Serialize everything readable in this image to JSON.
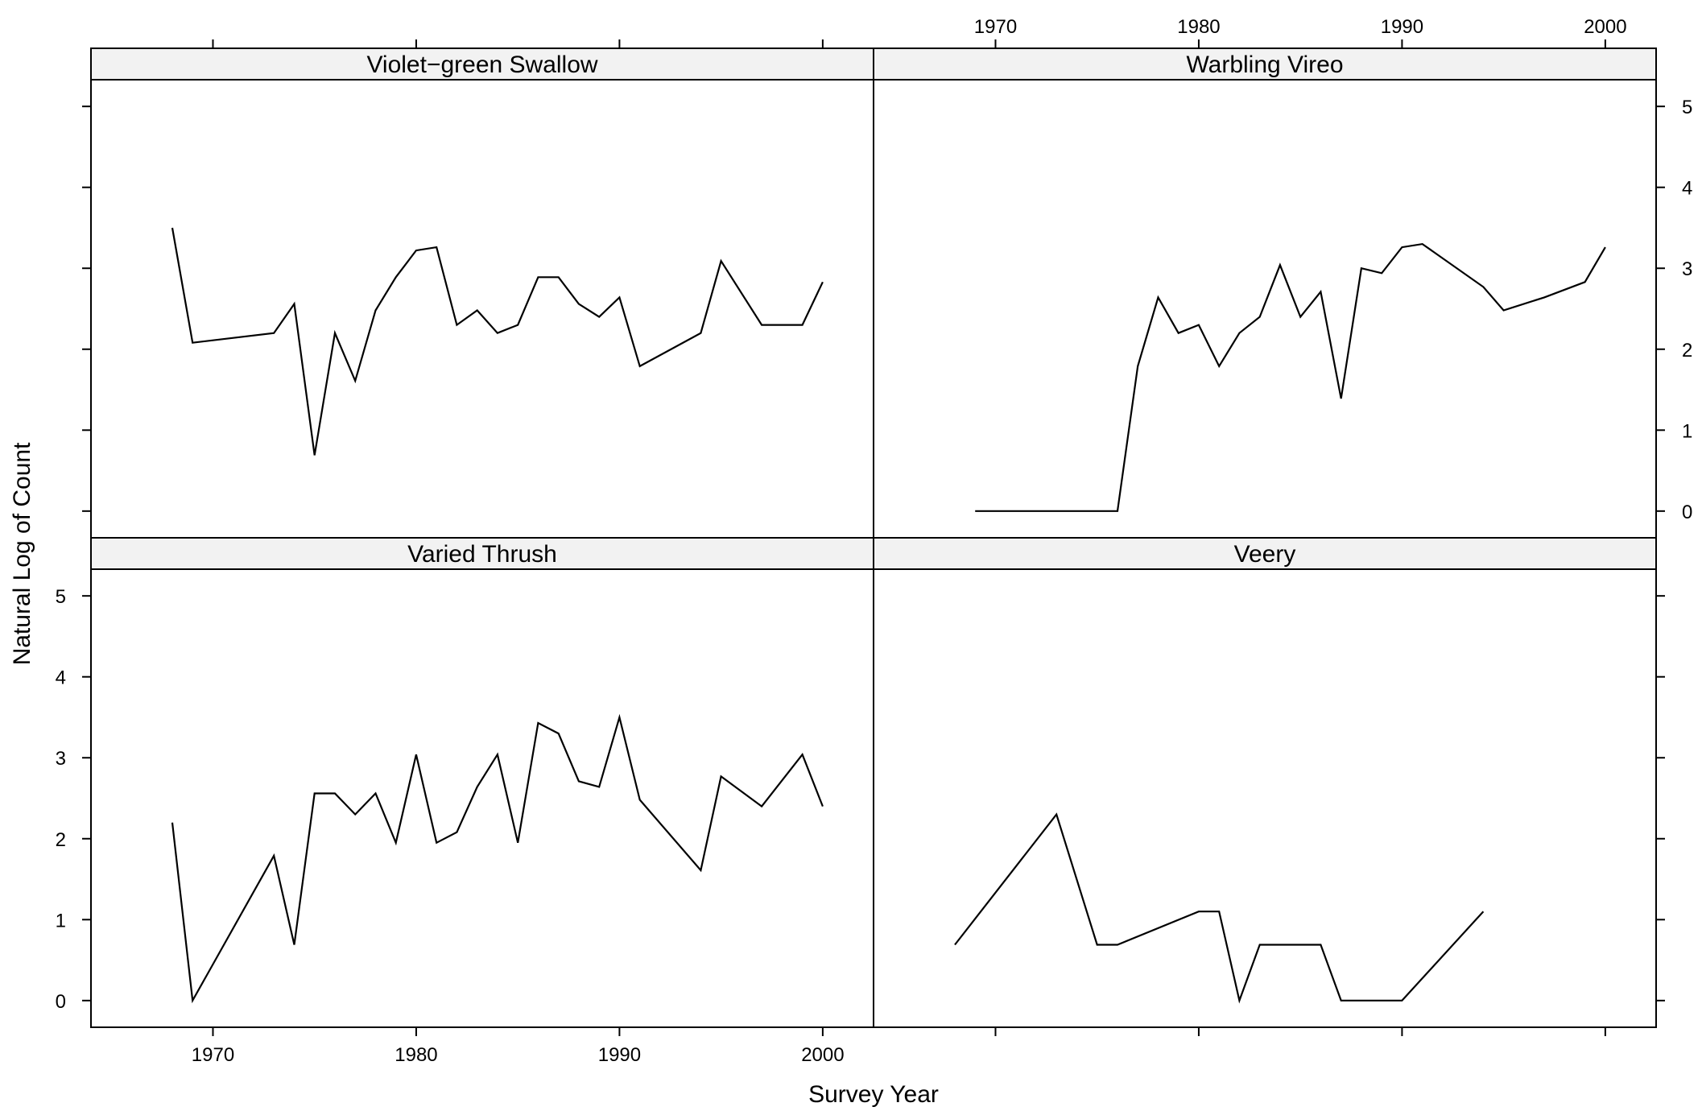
{
  "chart_data": {
    "type": "line",
    "layout": "2x2 trellis panels",
    "xlabel": "Survey Year",
    "ylabel": "Natural Log of Count",
    "xlim": [
      1964,
      2002.5
    ],
    "ylim": [
      -0.33,
      5.33
    ],
    "xticks": [
      1970,
      1980,
      1990,
      2000
    ],
    "yticks": [
      0,
      1,
      2,
      3,
      4,
      5
    ],
    "grid": false,
    "legend": "none",
    "panels": [
      {
        "title": "Violet−green Swallow",
        "row": "top",
        "col": "left",
        "x": [
          1968,
          1969,
          1973,
          1974,
          1975,
          1976,
          1977,
          1978,
          1979,
          1980,
          1981,
          1982,
          1983,
          1984,
          1985,
          1986,
          1987,
          1988,
          1989,
          1990,
          1991,
          1994,
          1995,
          1997,
          1999,
          2000
        ],
        "y": [
          3.5,
          2.08,
          2.2,
          2.56,
          0.69,
          2.2,
          1.61,
          2.48,
          2.89,
          3.22,
          3.26,
          2.3,
          2.48,
          2.2,
          2.3,
          2.89,
          2.89,
          2.56,
          2.4,
          2.64,
          1.79,
          2.2,
          3.09,
          2.3,
          2.3,
          2.83
        ]
      },
      {
        "title": "Warbling Vireo",
        "row": "top",
        "col": "right",
        "x": [
          1969,
          1976,
          1977,
          1978,
          1979,
          1980,
          1981,
          1982,
          1983,
          1984,
          1985,
          1986,
          1987,
          1988,
          1989,
          1990,
          1991,
          1994,
          1995,
          1997,
          1999,
          2000
        ],
        "y": [
          0,
          0,
          1.79,
          2.64,
          2.2,
          2.3,
          1.79,
          2.2,
          2.4,
          3.04,
          2.4,
          2.71,
          1.39,
          3.0,
          2.94,
          3.26,
          3.3,
          2.77,
          2.48,
          2.64,
          2.83,
          3.26
        ]
      },
      {
        "title": "Varied Thrush",
        "row": "bottom",
        "col": "left",
        "x": [
          1968,
          1969,
          1973,
          1974,
          1975,
          1976,
          1977,
          1978,
          1979,
          1980,
          1981,
          1982,
          1983,
          1984,
          1985,
          1986,
          1987,
          1988,
          1989,
          1990,
          1991,
          1994,
          1995,
          1997,
          1999,
          2000
        ],
        "y": [
          2.2,
          0,
          1.79,
          0.69,
          2.56,
          2.56,
          2.3,
          2.56,
          1.95,
          3.04,
          1.95,
          2.08,
          2.64,
          3.04,
          1.95,
          3.43,
          3.3,
          2.71,
          2.64,
          3.5,
          2.48,
          1.61,
          2.77,
          2.4,
          3.04,
          2.4
        ]
      },
      {
        "title": "Veery",
        "row": "bottom",
        "col": "right",
        "x": [
          1968,
          1973,
          1975,
          1976,
          1980,
          1981,
          1982,
          1983,
          1986,
          1987,
          1990,
          1994
        ],
        "y": [
          0.69,
          2.3,
          0.69,
          0.69,
          1.1,
          1.1,
          0,
          0.69,
          0.69,
          0,
          0,
          1.1
        ]
      }
    ]
  }
}
